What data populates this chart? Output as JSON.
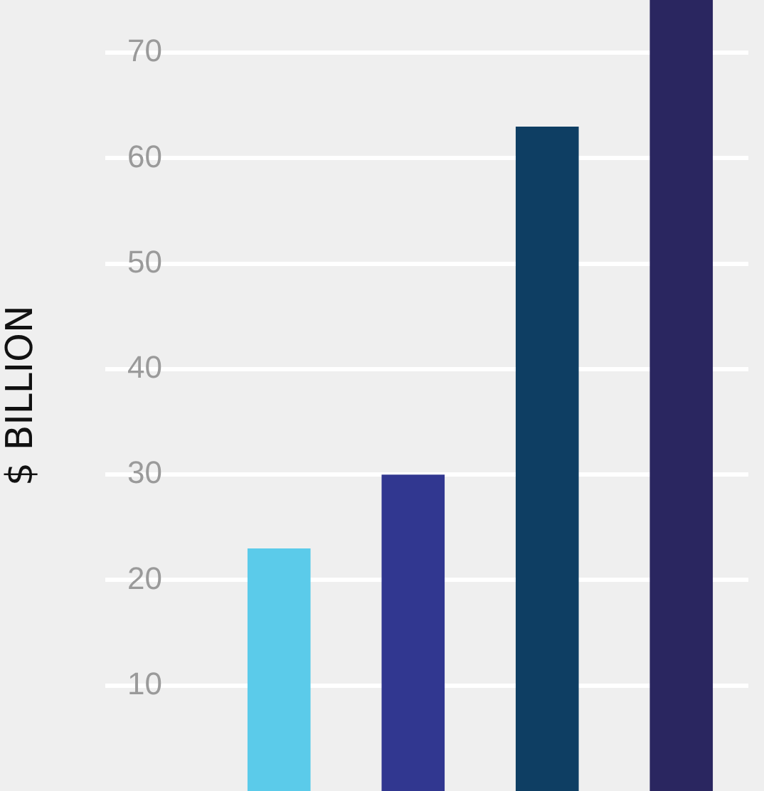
{
  "chart_data": {
    "type": "bar",
    "ylabel": "$ BILLION",
    "categories": [
      null,
      null,
      null,
      null
    ],
    "values": [
      23,
      30,
      63,
      75
    ],
    "colors": [
      "#5bcbea",
      "#313790",
      "#0e3e63",
      "#2a2660"
    ],
    "ylim": [
      0,
      75
    ],
    "yticks": [
      10,
      20,
      30,
      40,
      50,
      60,
      70
    ],
    "grid": "y",
    "legend": false,
    "tick_labels": "y"
  }
}
